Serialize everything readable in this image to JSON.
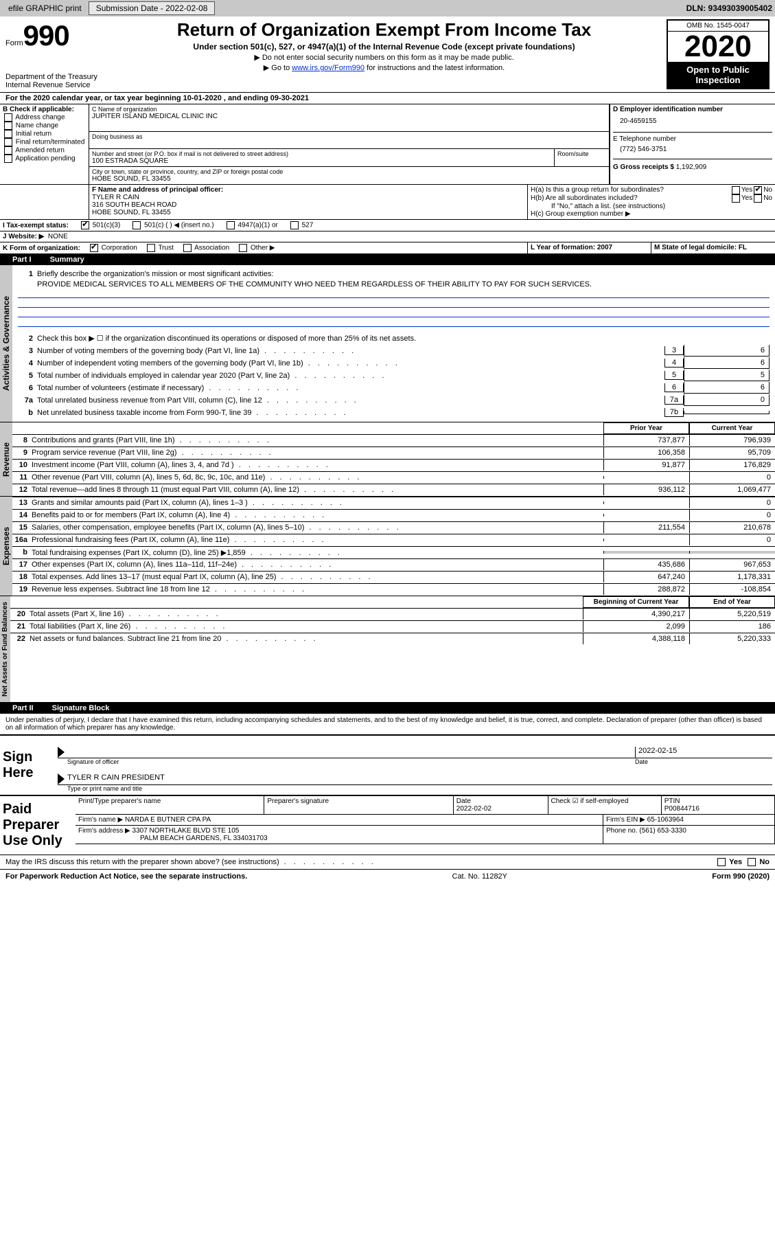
{
  "topbar": {
    "efile": "efile GRAPHIC print",
    "submission_label": "Submission Date - 2022-02-08",
    "dln_label": "DLN: 93493039005402"
  },
  "header": {
    "form_word": "Form",
    "form_num": "990",
    "dept1": "Department of the Treasury",
    "dept2": "Internal Revenue Service",
    "title": "Return of Organization Exempt From Income Tax",
    "subtitle": "Under section 501(c), 527, or 4947(a)(1) of the Internal Revenue Code (except private foundations)",
    "note1": "▶ Do not enter social security numbers on this form as it may be made public.",
    "note2_pre": "▶ Go to ",
    "note2_link": "www.irs.gov/Form990",
    "note2_post": " for instructions and the latest information.",
    "omb": "OMB No. 1545-0047",
    "year": "2020",
    "inspect": "Open to Public Inspection"
  },
  "periodA": "For the 2020 calendar year, or tax year beginning 10-01-2020    , and ending 09-30-2021",
  "boxB": {
    "label": "B Check if applicable:",
    "opts": [
      "Address change",
      "Name change",
      "Initial return",
      "Final return/terminated",
      "Amended return",
      "Application pending"
    ]
  },
  "boxC": {
    "name_label": "C Name of organization",
    "name": "JUPITER ISLAND MEDICAL CLINIC INC",
    "dba_label": "Doing business as",
    "street_label": "Number and street (or P.O. box if mail is not delivered to street address)",
    "room_label": "Room/suite",
    "street": "100 ESTRADA SQUARE",
    "city_label": "City or town, state or province, country, and ZIP or foreign postal code",
    "city": "HOBE SOUND, FL  33455"
  },
  "boxD": {
    "label": "D Employer identification number",
    "val": "20-4659155"
  },
  "boxE": {
    "label": "E Telephone number",
    "val": "(772) 546-3751"
  },
  "boxG": {
    "label": "G Gross receipts $",
    "val": "1,192,909"
  },
  "boxF": {
    "label": "F Name and address of principal officer:",
    "name": "TYLER R CAIN",
    "addr1": "316 SOUTH BEACH ROAD",
    "addr2": "HOBE SOUND, FL  33455"
  },
  "boxH": {
    "ha": "H(a)  Is this a group return for subordinates?",
    "hb": "H(b)  Are all subordinates included?",
    "hb_note": "If \"No,\" attach a list. (see instructions)",
    "hc": "H(c)  Group exemption number ▶",
    "yes": "Yes",
    "no": "No"
  },
  "boxI": {
    "label": "I   Tax-exempt status:",
    "o1": "501(c)(3)",
    "o2": "501(c) (   ) ◀ (insert no.)",
    "o3": "4947(a)(1) or",
    "o4": "527"
  },
  "boxJ": {
    "label": "J   Website: ▶",
    "val": "NONE"
  },
  "boxK": {
    "label": "K Form of organization:",
    "o1": "Corporation",
    "o2": "Trust",
    "o3": "Association",
    "o4": "Other ▶"
  },
  "boxL": {
    "label": "L Year of formation: 2007"
  },
  "boxM": {
    "label": "M State of legal domicile: FL"
  },
  "part1": {
    "title": "Part I",
    "name": "Summary",
    "q1": "Briefly describe the organization's mission or most significant activities:",
    "mission": "PROVIDE MEDICAL SERVICES TO ALL MEMBERS OF THE COMMUNITY WHO NEED THEM REGARDLESS OF THEIR ABILITY TO PAY FOR SUCH SERVICES.",
    "q2": "Check this box ▶ ☐  if the organization discontinued its operations or disposed of more than 25% of its net assets.",
    "lines_small": [
      {
        "n": "3",
        "t": "Number of voting members of the governing body (Part VI, line 1a)",
        "box": "3",
        "v": "6"
      },
      {
        "n": "4",
        "t": "Number of independent voting members of the governing body (Part VI, line 1b)",
        "box": "4",
        "v": "6"
      },
      {
        "n": "5",
        "t": "Total number of individuals employed in calendar year 2020 (Part V, line 2a)",
        "box": "5",
        "v": "5"
      },
      {
        "n": "6",
        "t": "Total number of volunteers (estimate if necessary)",
        "box": "6",
        "v": "6"
      },
      {
        "n": "7a",
        "t": "Total unrelated business revenue from Part VIII, column (C), line 12",
        "box": "7a",
        "v": "0"
      },
      {
        "n": "b",
        "t": "Net unrelated business taxable income from Form 990-T, line 39",
        "box": "7b",
        "v": ""
      }
    ],
    "col_prior": "Prior Year",
    "col_current": "Current Year",
    "revenue": [
      {
        "n": "8",
        "t": "Contributions and grants (Part VIII, line 1h)",
        "p": "737,877",
        "c": "796,939"
      },
      {
        "n": "9",
        "t": "Program service revenue (Part VIII, line 2g)",
        "p": "106,358",
        "c": "95,709"
      },
      {
        "n": "10",
        "t": "Investment income (Part VIII, column (A), lines 3, 4, and 7d )",
        "p": "91,877",
        "c": "176,829"
      },
      {
        "n": "11",
        "t": "Other revenue (Part VIII, column (A), lines 5, 6d, 8c, 9c, 10c, and 11e)",
        "p": "",
        "c": "0"
      },
      {
        "n": "12",
        "t": "Total revenue—add lines 8 through 11 (must equal Part VIII, column (A), line 12)",
        "p": "936,112",
        "c": "1,069,477"
      }
    ],
    "expenses": [
      {
        "n": "13",
        "t": "Grants and similar amounts paid (Part IX, column (A), lines 1–3 )",
        "p": "",
        "c": "0"
      },
      {
        "n": "14",
        "t": "Benefits paid to or for members (Part IX, column (A), line 4)",
        "p": "",
        "c": "0"
      },
      {
        "n": "15",
        "t": "Salaries, other compensation, employee benefits (Part IX, column (A), lines 5–10)",
        "p": "211,554",
        "c": "210,678"
      },
      {
        "n": "16a",
        "t": "Professional fundraising fees (Part IX, column (A), line 11e)",
        "p": "",
        "c": "0"
      },
      {
        "n": "b",
        "t": "Total fundraising expenses (Part IX, column (D), line 25) ▶1,859",
        "p": "GRAY",
        "c": "GRAY"
      },
      {
        "n": "17",
        "t": "Other expenses (Part IX, column (A), lines 11a–11d, 11f–24e)",
        "p": "435,686",
        "c": "967,653"
      },
      {
        "n": "18",
        "t": "Total expenses. Add lines 13–17 (must equal Part IX, column (A), line 25)",
        "p": "647,240",
        "c": "1,178,331"
      },
      {
        "n": "19",
        "t": "Revenue less expenses. Subtract line 18 from line 12",
        "p": "288,872",
        "c": "-108,854"
      }
    ],
    "col_begin": "Beginning of Current Year",
    "col_end": "End of Year",
    "netassets": [
      {
        "n": "20",
        "t": "Total assets (Part X, line 16)",
        "p": "4,390,217",
        "c": "5,220,519"
      },
      {
        "n": "21",
        "t": "Total liabilities (Part X, line 26)",
        "p": "2,099",
        "c": "186"
      },
      {
        "n": "22",
        "t": "Net assets or fund balances. Subtract line 21 from line 20",
        "p": "4,388,118",
        "c": "5,220,333"
      }
    ],
    "vlab1": "Activities & Governance",
    "vlab2": "Revenue",
    "vlab3": "Expenses",
    "vlab4": "Net Assets or Fund Balances"
  },
  "part2": {
    "title": "Part II",
    "name": "Signature Block",
    "penalty": "Under penalties of perjury, I declare that I have examined this return, including accompanying schedules and statements, and to the best of my knowledge and belief, it is true, correct, and complete. Declaration of preparer (other than officer) is based on all information of which preparer has any knowledge.",
    "sign_here": "Sign Here",
    "sig_officer": "Signature of officer",
    "sig_date": "2022-02-15",
    "date_label": "Date",
    "officer_name": "TYLER R CAIN  PRESIDENT",
    "type_label": "Type or print name and title",
    "paid": "Paid Preparer Use Only",
    "pcol1": "Print/Type preparer's name",
    "pcol2": "Preparer's signature",
    "pcol3_label": "Date",
    "pcol3": "2022-02-02",
    "pcol4_label": "Check ☑ if self-employed",
    "pcol5_label": "PTIN",
    "pcol5": "P00844716",
    "firm_name_label": "Firm's name    ▶",
    "firm_name": "NARDA E BUTNER CPA PA",
    "firm_ein_label": "Firm's EIN ▶",
    "firm_ein": "65-1063964",
    "firm_addr_label": "Firm's address ▶",
    "firm_addr1": "3307 NORTHLAKE BLVD STE 105",
    "firm_addr2": "PALM BEACH GARDENS, FL  334031703",
    "phone_label": "Phone no.",
    "phone": "(561) 653-3330",
    "discuss": "May the IRS discuss this return with the preparer shown above? (see instructions)"
  },
  "footer": {
    "left": "For Paperwork Reduction Act Notice, see the separate instructions.",
    "mid": "Cat. No. 11282Y",
    "right": "Form 990 (2020)"
  }
}
